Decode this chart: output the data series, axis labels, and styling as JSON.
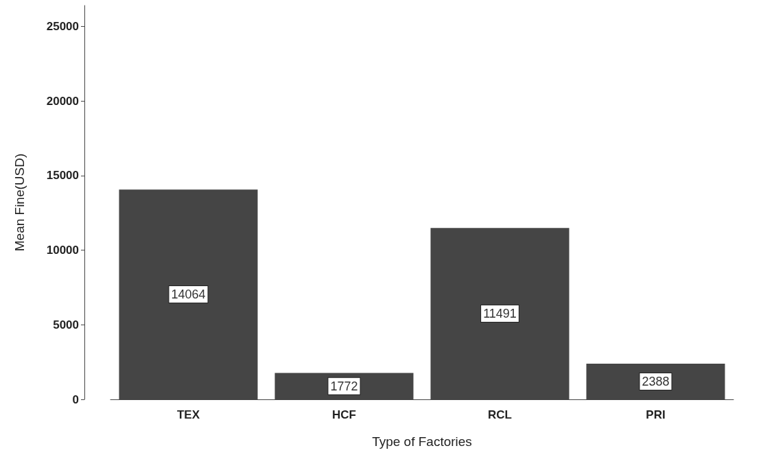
{
  "chart_data": {
    "type": "bar",
    "xlabel": "Type of Factories",
    "ylabel": "Mean Fine(USD)",
    "categories": [
      "TEX",
      "HCF",
      "RCL",
      "PRI"
    ],
    "values": [
      14064,
      1772,
      11491,
      2388
    ],
    "color": "#454545",
    "ylim": [
      0,
      26400
    ],
    "yticks": [
      0,
      5000,
      10000,
      15000,
      20000,
      25000
    ],
    "grid": false,
    "data_labels": true
  }
}
